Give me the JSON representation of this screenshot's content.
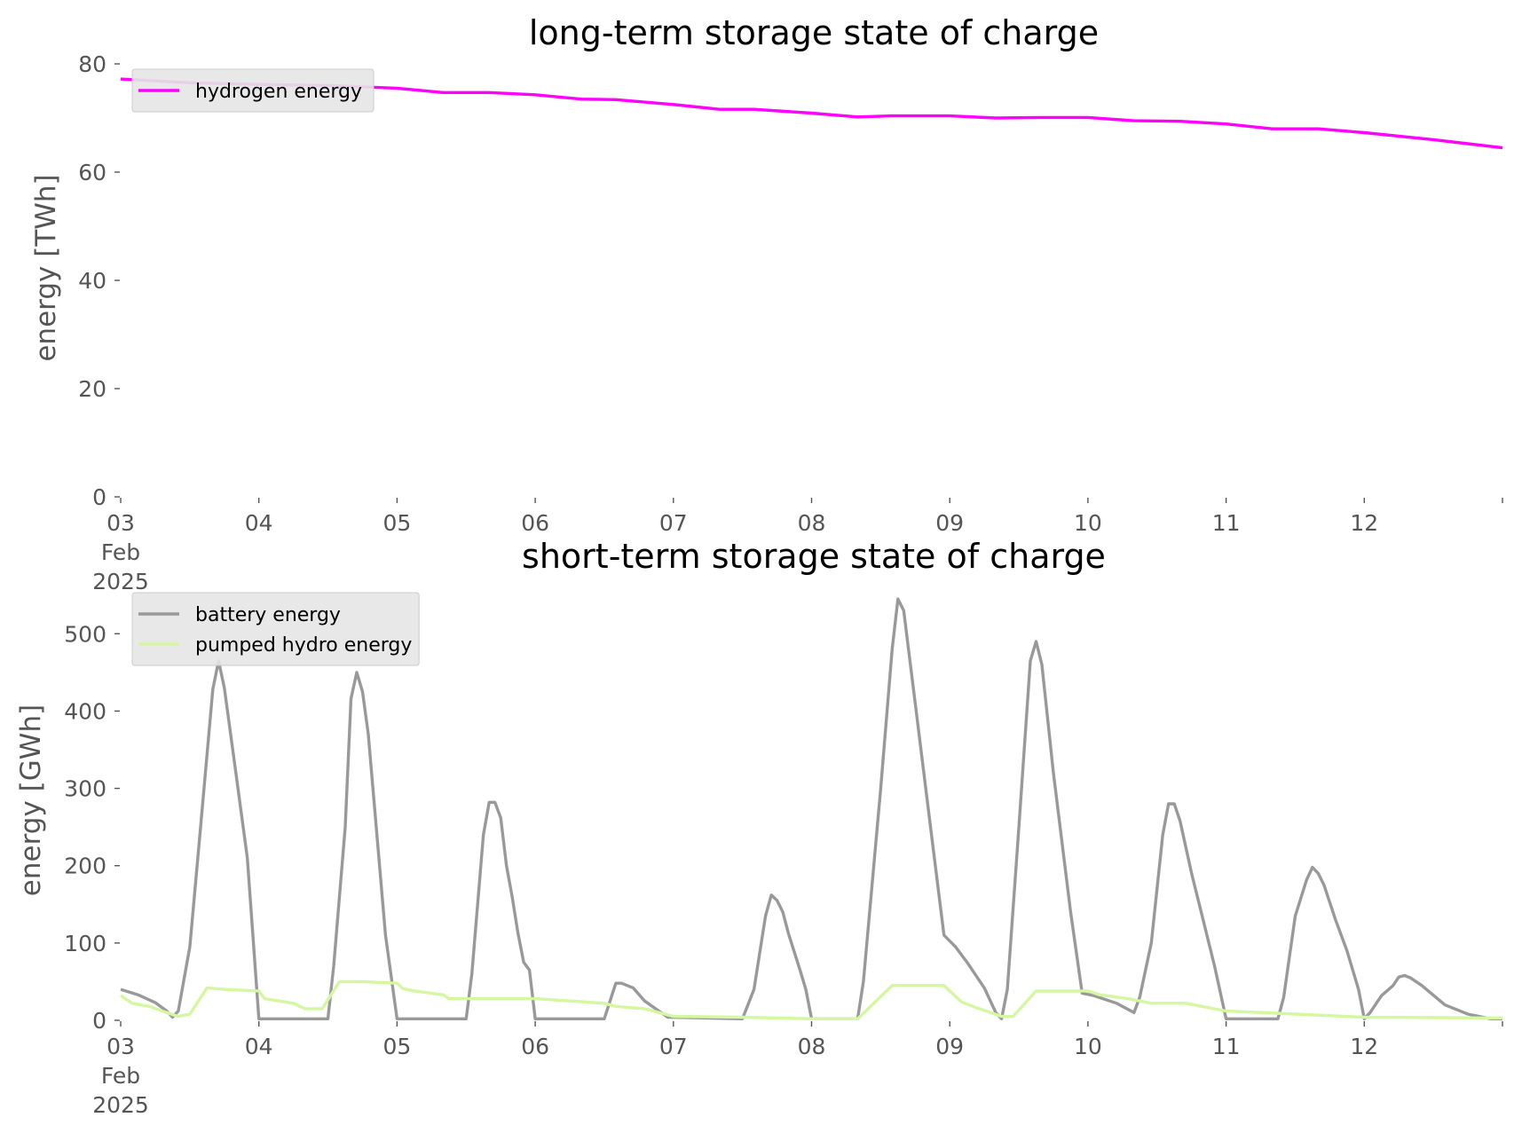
{
  "chart_data": [
    {
      "type": "line",
      "title": "long-term storage state of charge",
      "xlabel": "",
      "ylabel": "energy [TWh]",
      "x_ticks": [
        "03\nFeb\n2025",
        "04",
        "05",
        "06",
        "07",
        "08",
        "09",
        "10",
        "11",
        "12"
      ],
      "x_range": [
        "2025-02-03",
        "2025-02-13"
      ],
      "ylim": [
        0,
        80
      ],
      "y_ticks": [
        0,
        20,
        40,
        60,
        80
      ],
      "grid": false,
      "legend_position": "top-left",
      "series": [
        {
          "name": "hydrogen energy",
          "color": "#ff00ff",
          "points": [
            [
              "2025-02-03 00:00",
              77.2
            ],
            [
              "2025-02-03 12:00",
              76.5
            ],
            [
              "2025-02-04 00:00",
              76.2
            ],
            [
              "2025-02-04 12:00",
              76.0
            ],
            [
              "2025-02-05 00:00",
              75.5
            ],
            [
              "2025-02-05 08:00",
              74.7
            ],
            [
              "2025-02-05 16:00",
              74.7
            ],
            [
              "2025-02-06 00:00",
              74.3
            ],
            [
              "2025-02-06 08:00",
              73.5
            ],
            [
              "2025-02-06 14:00",
              73.4
            ],
            [
              "2025-02-07 00:00",
              72.5
            ],
            [
              "2025-02-07 08:00",
              71.6
            ],
            [
              "2025-02-07 14:00",
              71.6
            ],
            [
              "2025-02-08 00:00",
              70.9
            ],
            [
              "2025-02-08 08:00",
              70.2
            ],
            [
              "2025-02-08 14:00",
              70.4
            ],
            [
              "2025-02-09 00:00",
              70.4
            ],
            [
              "2025-02-09 08:00",
              70.0
            ],
            [
              "2025-02-09 16:00",
              70.1
            ],
            [
              "2025-02-10 00:00",
              70.1
            ],
            [
              "2025-02-10 08:00",
              69.5
            ],
            [
              "2025-02-10 16:00",
              69.4
            ],
            [
              "2025-02-11 00:00",
              68.9
            ],
            [
              "2025-02-11 08:00",
              68.0
            ],
            [
              "2025-02-11 16:00",
              68.0
            ],
            [
              "2025-02-12 00:00",
              67.3
            ],
            [
              "2025-02-12 12:00",
              66.0
            ],
            [
              "2025-02-13 00:00",
              64.5
            ]
          ]
        }
      ]
    },
    {
      "type": "line",
      "title": "short-term storage state of charge",
      "xlabel": "",
      "ylabel": "energy [GWh]",
      "x_ticks": [
        "03\nFeb\n2025",
        "04",
        "05",
        "06",
        "07",
        "08",
        "09",
        "10",
        "11",
        "12"
      ],
      "x_range": [
        "2025-02-03",
        "2025-02-13"
      ],
      "ylim": [
        0,
        560
      ],
      "y_ticks": [
        0,
        100,
        200,
        300,
        400,
        500
      ],
      "grid": false,
      "legend_position": "top-left",
      "series": [
        {
          "name": "battery energy",
          "color": "#999999",
          "points": [
            [
              "2025-02-03 00:00",
              40
            ],
            [
              "2025-02-03 03:00",
              33
            ],
            [
              "2025-02-03 06:00",
              23
            ],
            [
              "2025-02-03 08:00",
              12
            ],
            [
              "2025-02-03 09:00",
              4
            ],
            [
              "2025-02-03 10:00",
              12
            ],
            [
              "2025-02-03 12:00",
              95
            ],
            [
              "2025-02-03 14:00",
              260
            ],
            [
              "2025-02-03 16:00",
              428
            ],
            [
              "2025-02-03 17:00",
              465
            ],
            [
              "2025-02-03 18:00",
              430
            ],
            [
              "2025-02-03 20:00",
              320
            ],
            [
              "2025-02-03 22:00",
              210
            ],
            [
              "2025-02-04 00:00",
              2
            ],
            [
              "2025-02-04 12:00",
              2
            ],
            [
              "2025-02-04 13:00",
              70
            ],
            [
              "2025-02-04 15:00",
              250
            ],
            [
              "2025-02-04 16:00",
              416
            ],
            [
              "2025-02-04 17:00",
              450
            ],
            [
              "2025-02-04 18:00",
              425
            ],
            [
              "2025-02-04 19:00",
              370
            ],
            [
              "2025-02-04 22:00",
              110
            ],
            [
              "2025-02-05 00:00",
              2
            ],
            [
              "2025-02-05 12:00",
              2
            ],
            [
              "2025-02-05 13:00",
              60
            ],
            [
              "2025-02-05 15:00",
              240
            ],
            [
              "2025-02-05 16:00",
              282
            ],
            [
              "2025-02-05 17:00",
              282
            ],
            [
              "2025-02-05 18:00",
              262
            ],
            [
              "2025-02-05 19:00",
              200
            ],
            [
              "2025-02-05 20:00",
              160
            ],
            [
              "2025-02-05 21:00",
              113
            ],
            [
              "2025-02-05 22:00",
              75
            ],
            [
              "2025-02-05 23:00",
              65
            ],
            [
              "2025-02-06 00:00",
              2
            ],
            [
              "2025-02-06 12:00",
              2
            ],
            [
              "2025-02-06 14:00",
              48
            ],
            [
              "2025-02-06 15:00",
              48
            ],
            [
              "2025-02-06 17:00",
              42
            ],
            [
              "2025-02-06 19:00",
              25
            ],
            [
              "2025-02-06 23:00",
              4
            ],
            [
              "2025-02-07 12:00",
              2
            ],
            [
              "2025-02-07 14:00",
              40
            ],
            [
              "2025-02-07 16:00",
              135
            ],
            [
              "2025-02-07 17:00",
              162
            ],
            [
              "2025-02-07 18:00",
              155
            ],
            [
              "2025-02-07 19:00",
              140
            ],
            [
              "2025-02-07 20:00",
              112
            ],
            [
              "2025-02-07 22:00",
              65
            ],
            [
              "2025-02-07 23:00",
              40
            ],
            [
              "2025-02-08 00:00",
              2
            ],
            [
              "2025-02-08 08:00",
              2
            ],
            [
              "2025-02-08 09:00",
              50
            ],
            [
              "2025-02-08 12:00",
              300
            ],
            [
              "2025-02-08 14:00",
              480
            ],
            [
              "2025-02-08 15:00",
              545
            ],
            [
              "2025-02-08 16:00",
              530
            ],
            [
              "2025-02-08 18:00",
              410
            ],
            [
              "2025-02-08 21:00",
              230
            ],
            [
              "2025-02-08 23:00",
              110
            ],
            [
              "2025-02-09 01:00",
              95
            ],
            [
              "2025-02-09 03:00",
              75
            ],
            [
              "2025-02-09 06:00",
              42
            ],
            [
              "2025-02-09 08:00",
              10
            ],
            [
              "2025-02-09 09:00",
              2
            ],
            [
              "2025-02-09 10:00",
              40
            ],
            [
              "2025-02-09 12:00",
              250
            ],
            [
              "2025-02-09 14:00",
              465
            ],
            [
              "2025-02-09 15:00",
              490
            ],
            [
              "2025-02-09 16:00",
              460
            ],
            [
              "2025-02-09 18:00",
              320
            ],
            [
              "2025-02-09 21:00",
              140
            ],
            [
              "2025-02-09 23:00",
              35
            ],
            [
              "2025-02-10 01:00",
              32
            ],
            [
              "2025-02-10 05:00",
              22
            ],
            [
              "2025-02-10 08:00",
              10
            ],
            [
              "2025-02-10 09:00",
              30
            ],
            [
              "2025-02-10 11:00",
              100
            ],
            [
              "2025-02-10 13:00",
              240
            ],
            [
              "2025-02-10 14:00",
              280
            ],
            [
              "2025-02-10 15:00",
              280
            ],
            [
              "2025-02-10 16:00",
              258
            ],
            [
              "2025-02-10 18:00",
              190
            ],
            [
              "2025-02-10 20:00",
              130
            ],
            [
              "2025-02-10 22:00",
              70
            ],
            [
              "2025-02-11 00:00",
              2
            ],
            [
              "2025-02-11 09:00",
              2
            ],
            [
              "2025-02-11 10:00",
              30
            ],
            [
              "2025-02-11 12:00",
              135
            ],
            [
              "2025-02-11 14:00",
              182
            ],
            [
              "2025-02-11 15:00",
              198
            ],
            [
              "2025-02-11 16:00",
              190
            ],
            [
              "2025-02-11 17:00",
              175
            ],
            [
              "2025-02-11 19:00",
              130
            ],
            [
              "2025-02-11 21:00",
              90
            ],
            [
              "2025-02-11 23:00",
              40
            ],
            [
              "2025-02-12 00:00",
              2
            ],
            [
              "2025-02-12 01:00",
              10
            ],
            [
              "2025-02-12 03:00",
              32
            ],
            [
              "2025-02-12 05:00",
              45
            ],
            [
              "2025-02-12 06:00",
              56
            ],
            [
              "2025-02-12 07:00",
              58
            ],
            [
              "2025-02-12 08:00",
              55
            ],
            [
              "2025-02-12 10:00",
              45
            ],
            [
              "2025-02-12 14:00",
              20
            ],
            [
              "2025-02-12 18:00",
              8
            ],
            [
              "2025-02-12 22:00",
              2
            ],
            [
              "2025-02-13 00:00",
              2
            ]
          ]
        },
        {
          "name": "pumped hydro energy",
          "color": "#d4f7a0",
          "points": [
            [
              "2025-02-03 00:00",
              32
            ],
            [
              "2025-02-03 02:00",
              22
            ],
            [
              "2025-02-03 05:00",
              18
            ],
            [
              "2025-02-03 08:00",
              10
            ],
            [
              "2025-02-03 10:00",
              5
            ],
            [
              "2025-02-03 12:00",
              8
            ],
            [
              "2025-02-03 15:00",
              42
            ],
            [
              "2025-02-03 18:00",
              40
            ],
            [
              "2025-02-04 00:00",
              38
            ],
            [
              "2025-02-04 01:00",
              28
            ],
            [
              "2025-02-04 06:00",
              22
            ],
            [
              "2025-02-04 08:00",
              15
            ],
            [
              "2025-02-04 11:00",
              15
            ],
            [
              "2025-02-04 14:00",
              50
            ],
            [
              "2025-02-04 18:00",
              50
            ],
            [
              "2025-02-05 00:00",
              48
            ],
            [
              "2025-02-05 01:00",
              41
            ],
            [
              "2025-02-05 03:00",
              38
            ],
            [
              "2025-02-05 06:00",
              35
            ],
            [
              "2025-02-05 08:00",
              33
            ],
            [
              "2025-02-05 09:00",
              28
            ],
            [
              "2025-02-06 00:00",
              28
            ],
            [
              "2025-02-06 12:00",
              22
            ],
            [
              "2025-02-06 14:00",
              18
            ],
            [
              "2025-02-06 19:00",
              15
            ],
            [
              "2025-02-07 00:00",
              5
            ],
            [
              "2025-02-07 12:00",
              4
            ],
            [
              "2025-02-08 00:00",
              2
            ],
            [
              "2025-02-08 08:00",
              2
            ],
            [
              "2025-02-08 14:00",
              45
            ],
            [
              "2025-02-08 23:00",
              45
            ],
            [
              "2025-02-09 02:00",
              24
            ],
            [
              "2025-02-09 04:00",
              18
            ],
            [
              "2025-02-09 09:00",
              5
            ],
            [
              "2025-02-09 11:00",
              5
            ],
            [
              "2025-02-09 15:00",
              38
            ],
            [
              "2025-02-10 00:00",
              38
            ],
            [
              "2025-02-10 02:00",
              33
            ],
            [
              "2025-02-10 07:00",
              28
            ],
            [
              "2025-02-10 11:00",
              22
            ],
            [
              "2025-02-10 17:00",
              22
            ],
            [
              "2025-02-11 00:00",
              12
            ],
            [
              "2025-02-11 12:00",
              8
            ],
            [
              "2025-02-12 00:00",
              4
            ],
            [
              "2025-02-13 00:00",
              3
            ]
          ]
        }
      ]
    }
  ]
}
